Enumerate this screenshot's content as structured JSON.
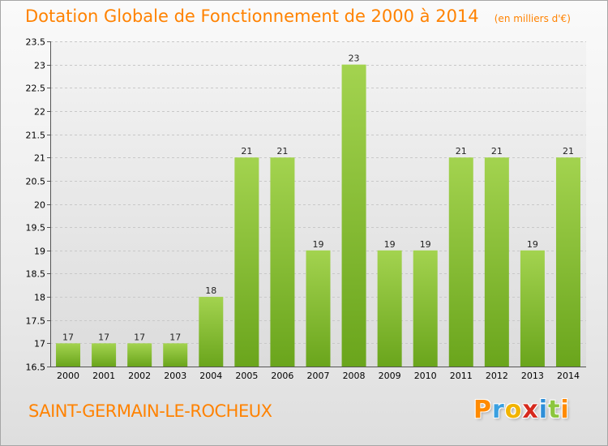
{
  "title": "Dotation Globale de Fonctionnement de 2000 à 2014",
  "unit": "(en milliers d'€)",
  "commune": "SAINT-GERMAIN-LE-ROCHEUX",
  "logo": {
    "letters": [
      "P",
      "r",
      "o",
      "x",
      "i",
      "t",
      "i"
    ],
    "colors": [
      "#ff8a00",
      "#3aa0e0",
      "#f2b400",
      "#d62a1e",
      "#2f8fd8",
      "#8cc63e",
      "#ff8a00"
    ]
  },
  "colors": {
    "accent": "#ff8200",
    "bar_top": "#a3d34f",
    "bar_bottom": "#6aa51c"
  },
  "chart_data": {
    "type": "bar",
    "categories": [
      "2000",
      "2001",
      "2002",
      "2003",
      "2004",
      "2005",
      "2006",
      "2007",
      "2008",
      "2009",
      "2010",
      "2011",
      "2012",
      "2013",
      "2014"
    ],
    "values": [
      17,
      17,
      17,
      17,
      18,
      21,
      21,
      19,
      23,
      19,
      19,
      21,
      21,
      19,
      21
    ],
    "data_labels": [
      "17",
      "17",
      "17",
      "17",
      "18",
      "21",
      "21",
      "19",
      "23",
      "19",
      "19",
      "21",
      "21",
      "19",
      "21"
    ],
    "ylim": [
      16.5,
      23.5
    ],
    "yticks": [
      16.5,
      17,
      17.5,
      18,
      18.5,
      19,
      19.5,
      20,
      20.5,
      21,
      21.5,
      22,
      22.5,
      23,
      23.5
    ],
    "ytick_labels": [
      "16.5",
      "17",
      "17.5",
      "18",
      "18.5",
      "19",
      "19.5",
      "20",
      "20.5",
      "21",
      "21.5",
      "22",
      "22.5",
      "23",
      "23.5"
    ],
    "grid": true,
    "xlabel": "",
    "ylabel": ""
  }
}
